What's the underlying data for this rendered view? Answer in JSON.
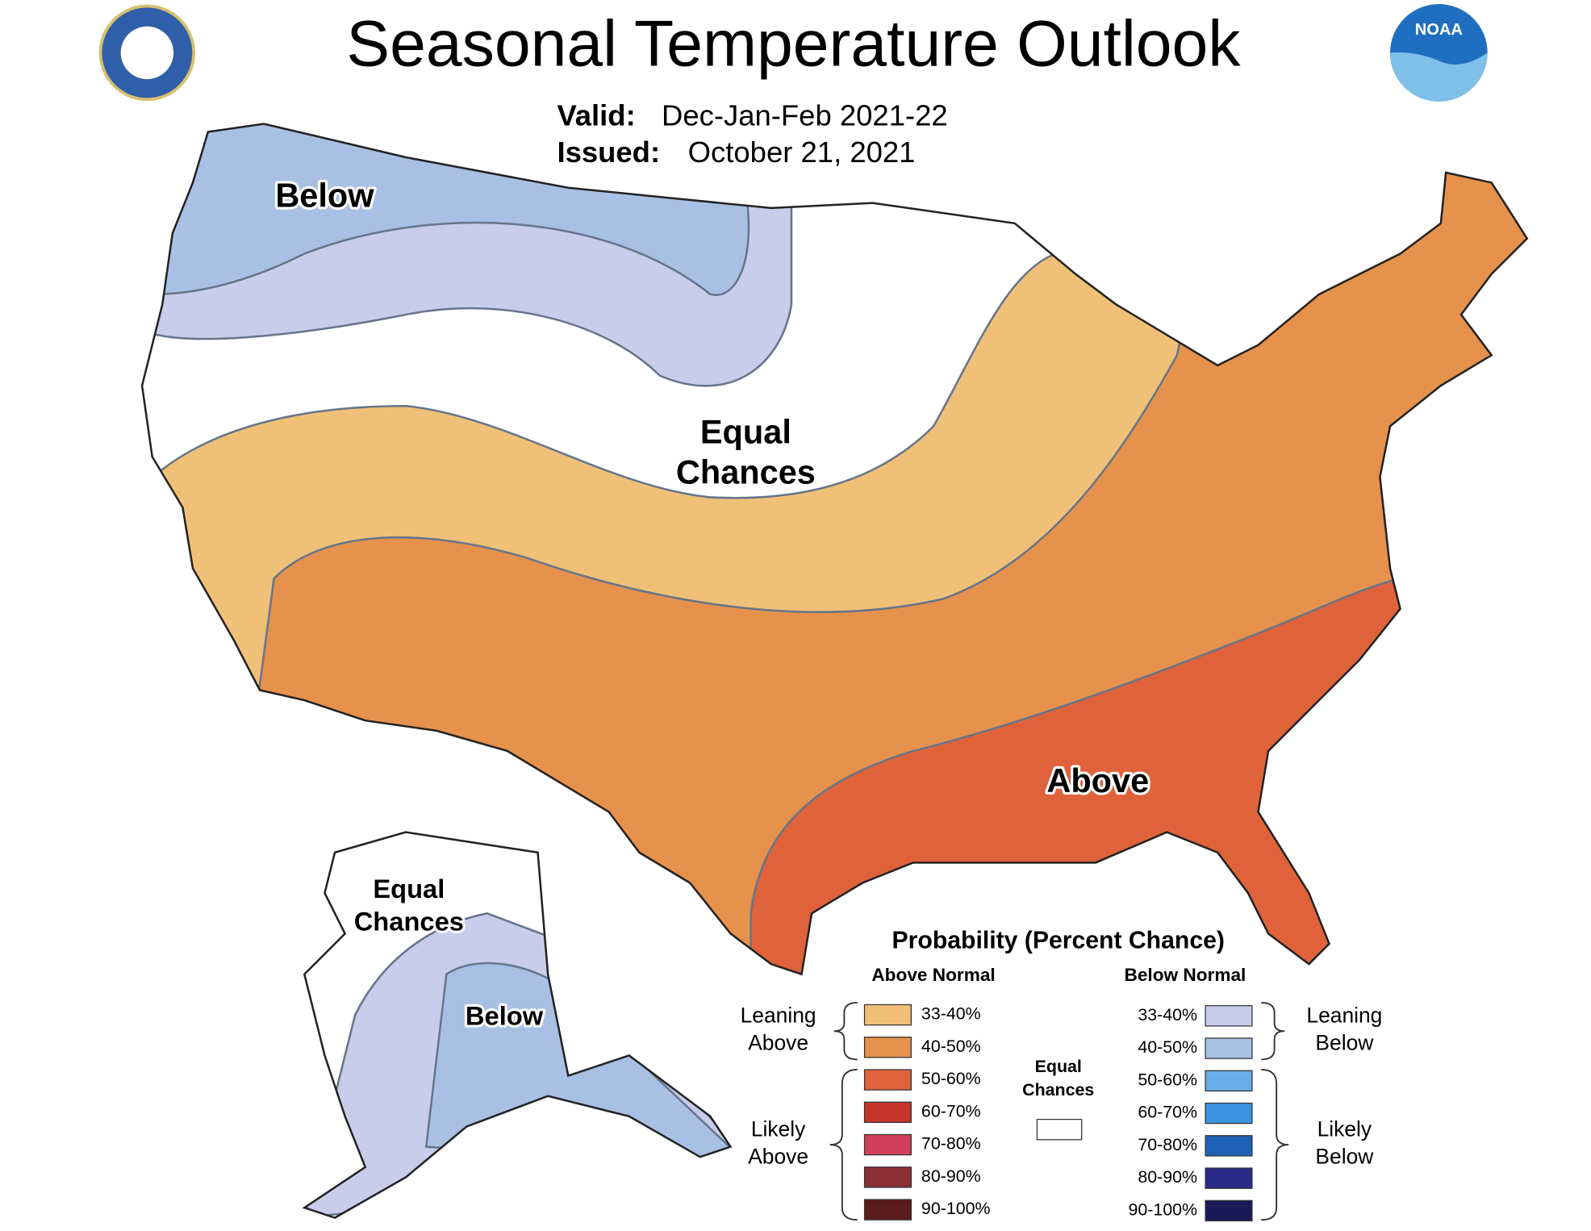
{
  "header": {
    "title": "Seasonal Temperature Outlook",
    "valid_label": "Valid:",
    "valid": "Dec-Jan-Feb 2021-22",
    "issued_label": "Issued:",
    "issued": "October 21, 2021"
  },
  "logos": {
    "noaa": "NOAA"
  },
  "map_labels": {
    "conus_below": "Below",
    "conus_equal": [
      "Equal",
      "Chances"
    ],
    "conus_above": "Above",
    "alaska_equal": [
      "Equal",
      "Chances"
    ],
    "alaska_below": "Below"
  },
  "legend": {
    "title": "Probability (Percent Chance)",
    "above_heading": "Above Normal",
    "below_heading": "Below Normal",
    "above": [
      {
        "label": "33-40%",
        "color": "#f0c078"
      },
      {
        "label": "40-50%",
        "color": "#e6914c"
      },
      {
        "label": "50-60%",
        "color": "#e0623a"
      },
      {
        "label": "60-70%",
        "color": "#c5352c"
      },
      {
        "label": "70-80%",
        "color": "#d0405c"
      },
      {
        "label": "80-90%",
        "color": "#8a2f34"
      },
      {
        "label": "90-100%",
        "color": "#5a1c1c"
      }
    ],
    "below": [
      {
        "label": "33-40%",
        "color": "#c8cdec"
      },
      {
        "label": "40-50%",
        "color": "#a8c0e4"
      },
      {
        "label": "50-60%",
        "color": "#68ade8"
      },
      {
        "label": "60-70%",
        "color": "#3c94e0"
      },
      {
        "label": "70-80%",
        "color": "#1e60b6"
      },
      {
        "label": "80-90%",
        "color": "#2a2a88"
      },
      {
        "label": "90-100%",
        "color": "#1a1a58"
      }
    ],
    "leaning_above": [
      "Leaning",
      "Above"
    ],
    "likely_above": [
      "Likely",
      "Above"
    ],
    "equal_chances": [
      "Equal",
      "Chances"
    ],
    "leaning_below": [
      "Leaning",
      "Below"
    ],
    "likely_below": [
      "Likely",
      "Below"
    ]
  }
}
